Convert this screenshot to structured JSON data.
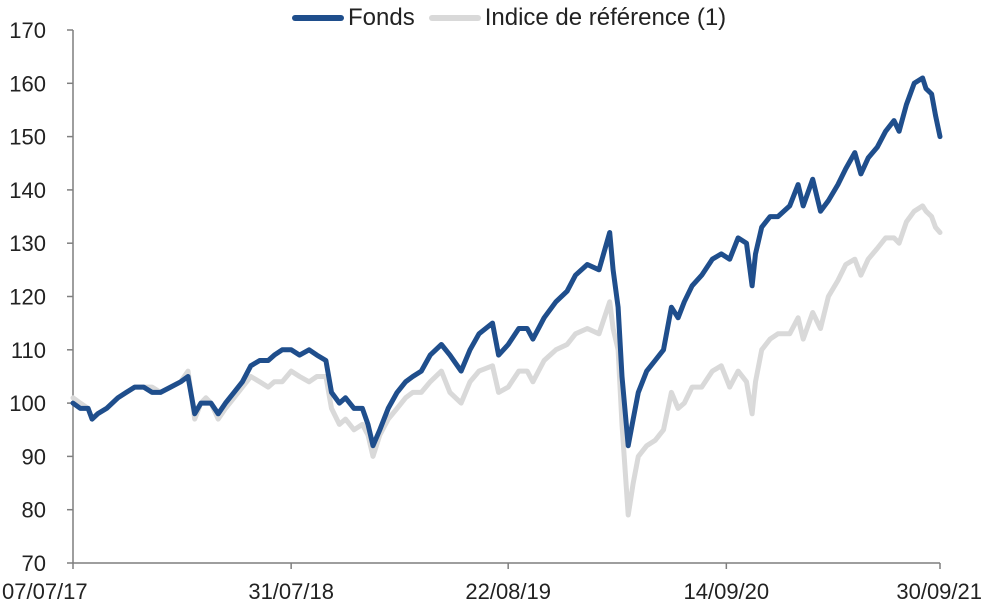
{
  "chart_data": {
    "type": "line",
    "title": "",
    "xlabel": "",
    "ylabel": "",
    "ylim": [
      70,
      170
    ],
    "yticks": [
      70,
      80,
      90,
      100,
      110,
      120,
      130,
      140,
      150,
      160,
      170
    ],
    "xlim": [
      "2017-07-07",
      "2021-09-30"
    ],
    "xticks": [
      {
        "date": "2017-07-07",
        "label": "07/07/17"
      },
      {
        "date": "2018-07-31",
        "label": "31/07/18"
      },
      {
        "date": "2019-08-22",
        "label": "22/08/19"
      },
      {
        "date": "2020-09-14",
        "label": "14/09/20"
      },
      {
        "date": "2021-09-30",
        "label": "30/09/21"
      }
    ],
    "legend_position": "top",
    "grid": false,
    "series": [
      {
        "name": "Indice de référence (1)",
        "color": "#d9d9d9",
        "points": [
          [
            "2017-07-07",
            101
          ],
          [
            "2017-07-20",
            100
          ],
          [
            "2017-08-03",
            99
          ],
          [
            "2017-08-10",
            97
          ],
          [
            "2017-08-20",
            98
          ],
          [
            "2017-09-05",
            99
          ],
          [
            "2017-09-25",
            101
          ],
          [
            "2017-10-10",
            102
          ],
          [
            "2017-10-25",
            103
          ],
          [
            "2017-11-10",
            103
          ],
          [
            "2017-11-25",
            103
          ],
          [
            "2017-12-10",
            102
          ],
          [
            "2017-12-28",
            103
          ],
          [
            "2018-01-15",
            104
          ],
          [
            "2018-01-28",
            106
          ],
          [
            "2018-02-09",
            97
          ],
          [
            "2018-02-20",
            100
          ],
          [
            "2018-03-01",
            101
          ],
          [
            "2018-03-10",
            100
          ],
          [
            "2018-03-23",
            97
          ],
          [
            "2018-04-05",
            99
          ],
          [
            "2018-04-20",
            101
          ],
          [
            "2018-05-05",
            103
          ],
          [
            "2018-05-20",
            105
          ],
          [
            "2018-06-05",
            104
          ],
          [
            "2018-06-20",
            103
          ],
          [
            "2018-07-01",
            104
          ],
          [
            "2018-07-15",
            104
          ],
          [
            "2018-07-31",
            106
          ],
          [
            "2018-08-15",
            105
          ],
          [
            "2018-09-01",
            104
          ],
          [
            "2018-09-15",
            105
          ],
          [
            "2018-10-01",
            105
          ],
          [
            "2018-10-11",
            99
          ],
          [
            "2018-10-25",
            96
          ],
          [
            "2018-11-05",
            97
          ],
          [
            "2018-11-20",
            95
          ],
          [
            "2018-12-05",
            96
          ],
          [
            "2018-12-15",
            94
          ],
          [
            "2018-12-24",
            90
          ],
          [
            "2019-01-05",
            94
          ],
          [
            "2019-01-20",
            97
          ],
          [
            "2019-02-05",
            99
          ],
          [
            "2019-02-20",
            101
          ],
          [
            "2019-03-05",
            102
          ],
          [
            "2019-03-20",
            102
          ],
          [
            "2019-04-05",
            104
          ],
          [
            "2019-04-25",
            106
          ],
          [
            "2019-05-10",
            102
          ],
          [
            "2019-05-30",
            100
          ],
          [
            "2019-06-15",
            104
          ],
          [
            "2019-07-01",
            106
          ],
          [
            "2019-07-25",
            107
          ],
          [
            "2019-08-05",
            102
          ],
          [
            "2019-08-22",
            103
          ],
          [
            "2019-09-10",
            106
          ],
          [
            "2019-09-25",
            106
          ],
          [
            "2019-10-05",
            104
          ],
          [
            "2019-10-25",
            108
          ],
          [
            "2019-11-15",
            110
          ],
          [
            "2019-12-05",
            111
          ],
          [
            "2019-12-20",
            113
          ],
          [
            "2020-01-10",
            114
          ],
          [
            "2020-01-31",
            113
          ],
          [
            "2020-02-19",
            119
          ],
          [
            "2020-02-25",
            114
          ],
          [
            "2020-03-05",
            110
          ],
          [
            "2020-03-12",
            96
          ],
          [
            "2020-03-23",
            79
          ],
          [
            "2020-04-01",
            85
          ],
          [
            "2020-04-10",
            90
          ],
          [
            "2020-04-25",
            92
          ],
          [
            "2020-05-10",
            93
          ],
          [
            "2020-05-25",
            95
          ],
          [
            "2020-06-08",
            102
          ],
          [
            "2020-06-20",
            99
          ],
          [
            "2020-07-01",
            100
          ],
          [
            "2020-07-15",
            103
          ],
          [
            "2020-08-01",
            103
          ],
          [
            "2020-08-20",
            106
          ],
          [
            "2020-09-05",
            107
          ],
          [
            "2020-09-20",
            103
          ],
          [
            "2020-10-05",
            106
          ],
          [
            "2020-10-20",
            104
          ],
          [
            "2020-10-30",
            98
          ],
          [
            "2020-11-05",
            104
          ],
          [
            "2020-11-16",
            110
          ],
          [
            "2020-12-01",
            112
          ],
          [
            "2020-12-15",
            113
          ],
          [
            "2021-01-05",
            113
          ],
          [
            "2021-01-20",
            116
          ],
          [
            "2021-01-29",
            112
          ],
          [
            "2021-02-15",
            117
          ],
          [
            "2021-03-01",
            114
          ],
          [
            "2021-03-15",
            120
          ],
          [
            "2021-04-01",
            123
          ],
          [
            "2021-04-15",
            126
          ],
          [
            "2021-05-01",
            127
          ],
          [
            "2021-05-12",
            124
          ],
          [
            "2021-05-25",
            127
          ],
          [
            "2021-06-10",
            129
          ],
          [
            "2021-06-25",
            131
          ],
          [
            "2021-07-10",
            131
          ],
          [
            "2021-07-19",
            130
          ],
          [
            "2021-08-01",
            134
          ],
          [
            "2021-08-15",
            136
          ],
          [
            "2021-08-30",
            137
          ],
          [
            "2021-09-05",
            136
          ],
          [
            "2021-09-15",
            135
          ],
          [
            "2021-09-22",
            133
          ],
          [
            "2021-09-30",
            132
          ]
        ]
      },
      {
        "name": "Fonds",
        "color": "#1f4e8c",
        "points": [
          [
            "2017-07-07",
            100
          ],
          [
            "2017-07-20",
            99
          ],
          [
            "2017-08-03",
            99
          ],
          [
            "2017-08-10",
            97
          ],
          [
            "2017-08-20",
            98
          ],
          [
            "2017-09-05",
            99
          ],
          [
            "2017-09-25",
            101
          ],
          [
            "2017-10-10",
            102
          ],
          [
            "2017-10-25",
            103
          ],
          [
            "2017-11-10",
            103
          ],
          [
            "2017-11-25",
            102
          ],
          [
            "2017-12-10",
            102
          ],
          [
            "2017-12-28",
            103
          ],
          [
            "2018-01-15",
            104
          ],
          [
            "2018-01-28",
            105
          ],
          [
            "2018-02-09",
            98
          ],
          [
            "2018-02-20",
            100
          ],
          [
            "2018-03-01",
            100
          ],
          [
            "2018-03-10",
            100
          ],
          [
            "2018-03-23",
            98
          ],
          [
            "2018-04-05",
            100
          ],
          [
            "2018-04-20",
            102
          ],
          [
            "2018-05-05",
            104
          ],
          [
            "2018-05-20",
            107
          ],
          [
            "2018-06-05",
            108
          ],
          [
            "2018-06-20",
            108
          ],
          [
            "2018-07-01",
            109
          ],
          [
            "2018-07-15",
            110
          ],
          [
            "2018-07-31",
            110
          ],
          [
            "2018-08-15",
            109
          ],
          [
            "2018-09-01",
            110
          ],
          [
            "2018-09-15",
            109
          ],
          [
            "2018-10-01",
            108
          ],
          [
            "2018-10-11",
            102
          ],
          [
            "2018-10-25",
            100
          ],
          [
            "2018-11-05",
            101
          ],
          [
            "2018-11-20",
            99
          ],
          [
            "2018-12-05",
            99
          ],
          [
            "2018-12-15",
            96
          ],
          [
            "2018-12-24",
            92
          ],
          [
            "2019-01-05",
            95
          ],
          [
            "2019-01-20",
            99
          ],
          [
            "2019-02-05",
            102
          ],
          [
            "2019-02-20",
            104
          ],
          [
            "2019-03-05",
            105
          ],
          [
            "2019-03-20",
            106
          ],
          [
            "2019-04-05",
            109
          ],
          [
            "2019-04-25",
            111
          ],
          [
            "2019-05-10",
            109
          ],
          [
            "2019-05-30",
            106
          ],
          [
            "2019-06-15",
            110
          ],
          [
            "2019-07-01",
            113
          ],
          [
            "2019-07-25",
            115
          ],
          [
            "2019-08-05",
            109
          ],
          [
            "2019-08-22",
            111
          ],
          [
            "2019-09-10",
            114
          ],
          [
            "2019-09-25",
            114
          ],
          [
            "2019-10-05",
            112
          ],
          [
            "2019-10-25",
            116
          ],
          [
            "2019-11-15",
            119
          ],
          [
            "2019-12-05",
            121
          ],
          [
            "2019-12-20",
            124
          ],
          [
            "2020-01-10",
            126
          ],
          [
            "2020-01-31",
            125
          ],
          [
            "2020-02-19",
            132
          ],
          [
            "2020-02-25",
            125
          ],
          [
            "2020-03-05",
            118
          ],
          [
            "2020-03-12",
            105
          ],
          [
            "2020-03-23",
            92
          ],
          [
            "2020-04-01",
            97
          ],
          [
            "2020-04-10",
            102
          ],
          [
            "2020-04-25",
            106
          ],
          [
            "2020-05-10",
            108
          ],
          [
            "2020-05-25",
            110
          ],
          [
            "2020-06-08",
            118
          ],
          [
            "2020-06-20",
            116
          ],
          [
            "2020-07-01",
            119
          ],
          [
            "2020-07-15",
            122
          ],
          [
            "2020-08-01",
            124
          ],
          [
            "2020-08-20",
            127
          ],
          [
            "2020-09-05",
            128
          ],
          [
            "2020-09-20",
            127
          ],
          [
            "2020-10-05",
            131
          ],
          [
            "2020-10-20",
            130
          ],
          [
            "2020-10-30",
            122
          ],
          [
            "2020-11-05",
            128
          ],
          [
            "2020-11-16",
            133
          ],
          [
            "2020-12-01",
            135
          ],
          [
            "2020-12-15",
            135
          ],
          [
            "2021-01-05",
            137
          ],
          [
            "2021-01-20",
            141
          ],
          [
            "2021-01-29",
            137
          ],
          [
            "2021-02-15",
            142
          ],
          [
            "2021-03-01",
            136
          ],
          [
            "2021-03-15",
            138
          ],
          [
            "2021-04-01",
            141
          ],
          [
            "2021-04-15",
            144
          ],
          [
            "2021-05-01",
            147
          ],
          [
            "2021-05-12",
            143
          ],
          [
            "2021-05-25",
            146
          ],
          [
            "2021-06-10",
            148
          ],
          [
            "2021-06-25",
            151
          ],
          [
            "2021-07-10",
            153
          ],
          [
            "2021-07-19",
            151
          ],
          [
            "2021-08-01",
            156
          ],
          [
            "2021-08-15",
            160
          ],
          [
            "2021-08-30",
            161
          ],
          [
            "2021-09-05",
            159
          ],
          [
            "2021-09-15",
            158
          ],
          [
            "2021-09-22",
            154
          ],
          [
            "2021-09-30",
            150
          ]
        ]
      }
    ]
  }
}
